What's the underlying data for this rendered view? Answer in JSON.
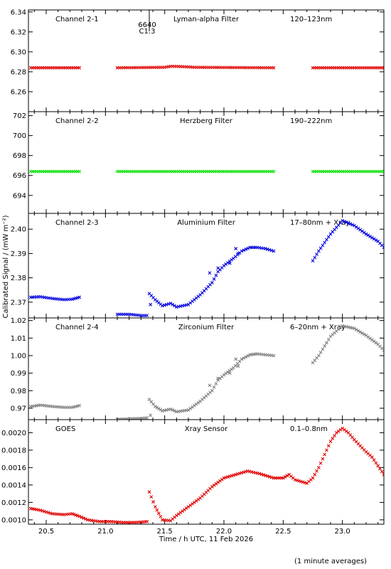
{
  "ylabel": "Calibrated Signal / (mW m⁻²)",
  "xlabel": "Time / h UTC, 11 Feb 2026",
  "footnote": "(1 minute averages)",
  "flare_marker": {
    "region": "6640",
    "class": "C1.3",
    "x": 21.37
  },
  "xaxis": {
    "range": [
      20.35,
      23.35
    ],
    "ticks": [
      "20.5",
      "21.0",
      "21.5",
      "22.0",
      "22.5",
      "23.0"
    ]
  },
  "chart_data": [
    {
      "type": "scatter",
      "panel": "Channel 2-1",
      "filter": "Lyman-alpha Filter",
      "band": "120–123nm",
      "color": "#e00000",
      "ylim": [
        6.24,
        6.342
      ],
      "yticks": [
        "6.26",
        "6.28",
        "6.30",
        "6.32",
        "6.34"
      ],
      "segments": [
        {
          "x": [
            20.37,
            20.78
          ],
          "y": [
            6.284,
            6.284
          ]
        },
        {
          "x": [
            21.1,
            21.5,
            21.55,
            21.65,
            21.75,
            22.42
          ],
          "y": [
            6.284,
            6.2845,
            6.2855,
            6.2852,
            6.2845,
            6.284
          ]
        },
        {
          "x": [
            22.75,
            23.35
          ],
          "y": [
            6.284,
            6.284
          ]
        }
      ]
    },
    {
      "type": "scatter",
      "panel": "Channel 2-2",
      "filter": "Herzberg Filter",
      "band": "190–222nm",
      "color": "#00e000",
      "ylim": [
        692.2,
        702.4
      ],
      "yticks": [
        "694",
        "696",
        "698",
        "700",
        "702"
      ],
      "segments": [
        {
          "x": [
            20.37,
            20.78
          ],
          "y": [
            696.4,
            696.4
          ]
        },
        {
          "x": [
            21.1,
            22.42
          ],
          "y": [
            696.4,
            696.4
          ]
        },
        {
          "x": [
            22.75,
            23.35
          ],
          "y": [
            696.4,
            696.4
          ]
        }
      ]
    },
    {
      "type": "scatter",
      "panel": "Channel 2-3",
      "filter": "Aluminium Filter",
      "band": "17–80nm + Xray",
      "color": "#0000e0",
      "ylim": [
        2.3635,
        2.4065
      ],
      "yticks": [
        "2.37",
        "2.38",
        "2.39",
        "2.40"
      ],
      "segments": [
        {
          "x": [
            20.37,
            20.45,
            20.55,
            20.65,
            20.72,
            20.78
          ],
          "y": [
            2.372,
            2.3722,
            2.3715,
            2.371,
            2.3712,
            2.372
          ]
        },
        {
          "x": [
            21.1,
            21.2,
            21.3,
            21.35
          ],
          "y": [
            2.365,
            2.365,
            2.3645,
            2.3645
          ]
        },
        {
          "x": [
            21.37,
            21.42,
            21.48,
            21.55,
            21.6,
            21.7,
            21.8,
            21.9,
            21.95,
            22.0,
            22.08,
            22.15,
            22.22,
            22.28,
            22.35,
            22.42
          ],
          "y": [
            2.3735,
            2.371,
            2.3685,
            2.3695,
            2.368,
            2.369,
            2.373,
            2.378,
            2.3825,
            2.385,
            2.388,
            2.391,
            2.3925,
            2.3925,
            2.392,
            2.391
          ]
        },
        {
          "x": [
            22.75,
            22.8,
            22.9,
            23.0,
            23.1,
            23.2,
            23.3,
            23.35
          ],
          "y": [
            2.387,
            2.391,
            2.398,
            2.4035,
            2.4015,
            2.398,
            2.395,
            2.3925
          ]
        }
      ],
      "scatter_points": {
        "x": [
          21.38,
          21.88,
          21.95,
          22.05,
          22.1,
          22.12
        ],
        "y": [
          2.369,
          2.382,
          2.384,
          2.386,
          2.392,
          2.39
        ]
      }
    },
    {
      "type": "scatter",
      "panel": "Channel 2-4",
      "filter": "Zirconium Filter",
      "band": "6–20nm + Xray",
      "color": "#808080",
      "ylim": [
        0.9635,
        1.0215
      ],
      "yticks": [
        "0.97",
        "0.98",
        "0.99",
        "1.00",
        "1.01",
        "1.02"
      ],
      "segments": [
        {
          "x": [
            20.37,
            20.45,
            20.55,
            20.65,
            20.72,
            20.78
          ],
          "y": [
            0.971,
            0.9718,
            0.971,
            0.9705,
            0.9705,
            0.9715
          ]
        },
        {
          "x": [
            21.1,
            21.2,
            21.3,
            21.35
          ],
          "y": [
            0.9637,
            0.964,
            0.9642,
            0.9645
          ]
        },
        {
          "x": [
            21.37,
            21.42,
            21.48,
            21.55,
            21.6,
            21.7,
            21.8,
            21.9,
            21.95,
            22.0,
            22.08,
            22.15,
            22.22,
            22.28,
            22.35,
            22.42
          ],
          "y": [
            0.975,
            0.971,
            0.9685,
            0.9695,
            0.968,
            0.969,
            0.974,
            0.98,
            0.986,
            0.989,
            0.993,
            0.998,
            1.0005,
            1.001,
            1.0005,
            1.0
          ]
        },
        {
          "x": [
            22.75,
            22.8,
            22.9,
            23.0,
            23.1,
            23.2,
            23.3,
            23.35
          ],
          "y": [
            0.996,
            1.0,
            1.011,
            1.017,
            1.0155,
            1.0115,
            1.0065,
            1.003
          ]
        }
      ],
      "scatter_points": {
        "x": [
          21.38,
          21.88,
          21.95,
          22.05,
          22.1,
          22.12
        ],
        "y": [
          0.966,
          0.983,
          0.987,
          0.99,
          0.998,
          0.994
        ]
      }
    },
    {
      "type": "scatter",
      "panel": "GOES",
      "filter": "Xray Sensor",
      "band": "0.1–0.8nm",
      "color": "#e00000",
      "ylim": [
        0.00095,
        0.00215
      ],
      "yticks": [
        "0.0010",
        "0.0012",
        "0.0014",
        "0.0016",
        "0.0018",
        "0.0020"
      ],
      "segments": [
        {
          "x": [
            20.37,
            20.45,
            20.55,
            20.65,
            20.72,
            20.78,
            20.85,
            20.95,
            21.05,
            21.15,
            21.25,
            21.35
          ],
          "y": [
            0.00113,
            0.00111,
            0.00107,
            0.00106,
            0.00107,
            0.00104,
            0.001,
            0.00098,
            0.00098,
            0.00097,
            0.00097,
            0.00098
          ]
        },
        {
          "x": [
            21.37,
            21.42,
            21.48,
            21.55,
            21.6,
            21.7,
            21.8,
            21.9,
            22.0,
            22.1,
            22.2,
            22.3,
            22.42,
            22.5,
            22.55,
            22.6,
            22.7,
            22.75,
            22.8,
            22.85,
            22.9,
            22.95,
            23.0,
            23.05,
            23.1,
            23.2,
            23.25,
            23.3,
            23.35
          ],
          "y": [
            0.00132,
            0.00115,
            0.001,
            0.00099,
            0.00105,
            0.00115,
            0.00125,
            0.00138,
            0.00148,
            0.00152,
            0.00156,
            0.00153,
            0.00148,
            0.00148,
            0.00152,
            0.00146,
            0.00142,
            0.00148,
            0.0016,
            0.00175,
            0.0019,
            0.002,
            0.00205,
            0.002,
            0.00192,
            0.00178,
            0.00172,
            0.00162,
            0.00152
          ]
        }
      ]
    }
  ]
}
